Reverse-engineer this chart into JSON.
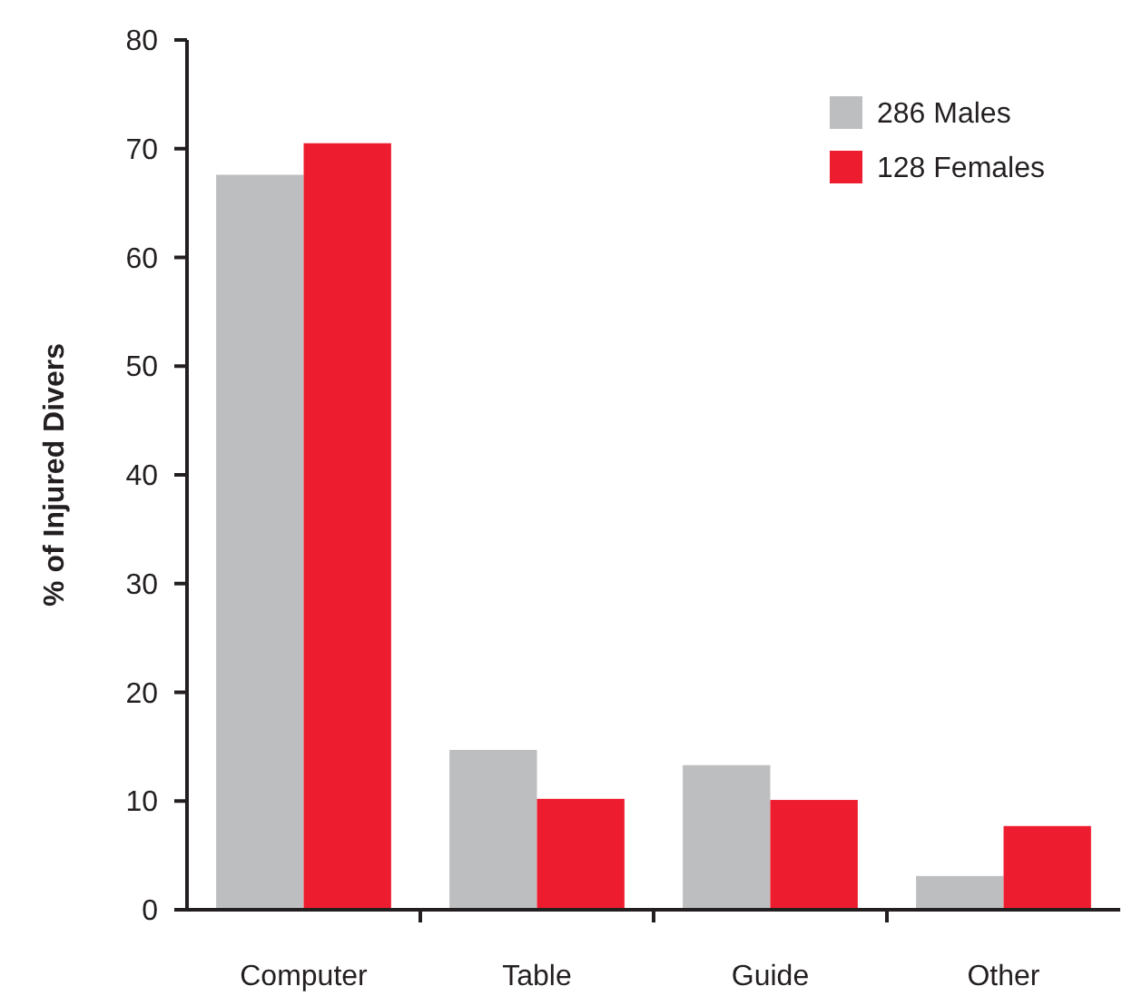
{
  "chart_data": {
    "type": "bar",
    "ylabel": "% of Injured Divers",
    "categories": [
      "Computer",
      "Table",
      "Guide",
      "Other"
    ],
    "series": [
      {
        "name": "286 Males",
        "color": "#bcbec0",
        "values": [
          67.6,
          14.7,
          13.3,
          3.1
        ]
      },
      {
        "name": "128 Females",
        "color": "#ed1c2e",
        "values": [
          70.5,
          10.2,
          10.1,
          7.7
        ]
      }
    ],
    "ylim": [
      0,
      80
    ],
    "yticks": [
      0,
      10,
      20,
      30,
      40,
      50,
      60,
      70,
      80
    ],
    "legend": "top right",
    "grid": false
  }
}
